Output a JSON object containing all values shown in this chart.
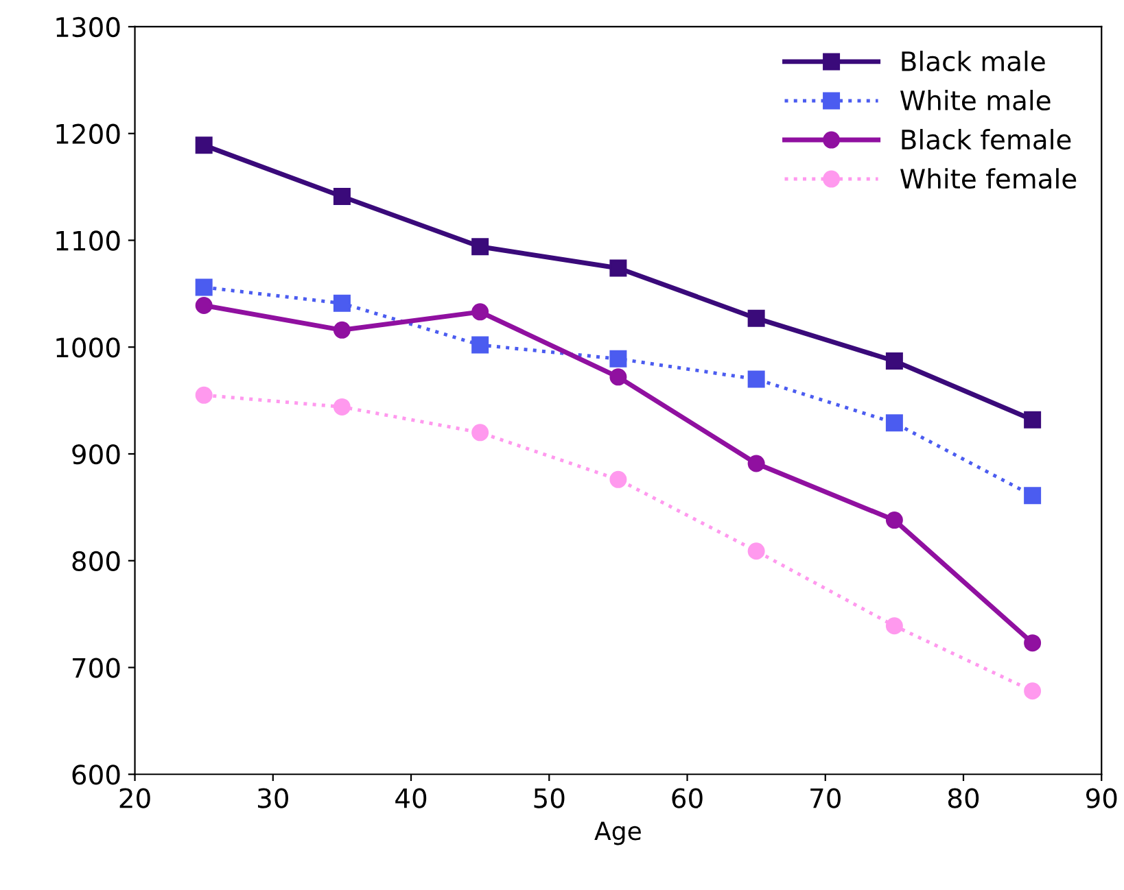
{
  "chart_data": {
    "type": "line",
    "xlabel": "Age",
    "x": [
      25,
      35,
      45,
      55,
      65,
      75,
      85
    ],
    "xlim": [
      20,
      90
    ],
    "xticks": [
      20,
      30,
      40,
      50,
      60,
      70,
      80,
      90
    ],
    "ylim": [
      600,
      1300
    ],
    "yticks": [
      600,
      700,
      800,
      900,
      1000,
      1100,
      1200,
      1300
    ],
    "grid": false,
    "legend": "top right",
    "series": [
      {
        "name": "Black male",
        "color": "#3a0a7a",
        "marker": "square",
        "line_style": "solid",
        "values": [
          1189,
          1141,
          1094,
          1074,
          1027,
          987,
          932
        ]
      },
      {
        "name": "White male",
        "color": "#4b5cf0",
        "marker": "square",
        "line_style": "dotted",
        "values": [
          1056,
          1041,
          1002,
          989,
          970,
          929,
          861
        ]
      },
      {
        "name": "Black female",
        "color": "#9010a0",
        "marker": "circle",
        "line_style": "solid",
        "values": [
          1039,
          1016,
          1033,
          972,
          891,
          838,
          723
        ]
      },
      {
        "name": "White female",
        "color": "#ff99ee",
        "marker": "circle",
        "line_style": "dotted",
        "values": [
          955,
          944,
          920,
          876,
          809,
          739,
          678
        ]
      }
    ]
  }
}
